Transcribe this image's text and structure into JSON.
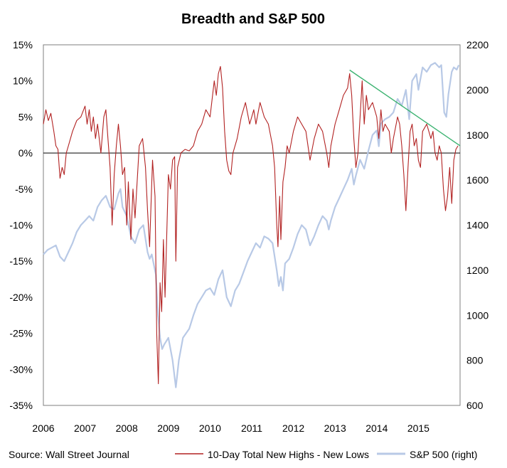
{
  "chart_data": {
    "type": "line",
    "title": "Breadth and S&P 500",
    "source": "Source: Wall Street Journal",
    "x_ticks": [
      "2006",
      "2007",
      "2008",
      "2009",
      "2010",
      "2011",
      "2012",
      "2013",
      "2014",
      "2015"
    ],
    "x_range": [
      2006.0,
      2016.0
    ],
    "y_left": {
      "range": [
        -35,
        15
      ],
      "ticks": [
        -35,
        -30,
        -25,
        -20,
        -15,
        -10,
        -5,
        0,
        5,
        10,
        15
      ],
      "tick_labels": [
        "-35%",
        "-30%",
        "-25%",
        "-20%",
        "-15%",
        "-10%",
        "-5%",
        "0%",
        "5%",
        "10%",
        "15%"
      ]
    },
    "y_right": {
      "range": [
        600,
        2200
      ],
      "ticks": [
        600,
        800,
        1000,
        1200,
        1400,
        1600,
        1800,
        2000,
        2200
      ],
      "tick_labels": [
        "600",
        "800",
        "1000",
        "1200",
        "1400",
        "1600",
        "1800",
        "2000",
        "2200"
      ]
    },
    "grid": false,
    "legend_position": "bottom",
    "series": [
      {
        "name": "10-Day Total New Highs - New Lows",
        "axis": "left",
        "color": "#b22222",
        "points": [
          [
            2006.0,
            4
          ],
          [
            2006.06,
            6
          ],
          [
            2006.12,
            4.5
          ],
          [
            2006.18,
            5.5
          ],
          [
            2006.25,
            3
          ],
          [
            2006.3,
            1
          ],
          [
            2006.35,
            0.5
          ],
          [
            2006.4,
            -3.5
          ],
          [
            2006.45,
            -2
          ],
          [
            2006.5,
            -3
          ],
          [
            2006.55,
            0
          ],
          [
            2006.6,
            1
          ],
          [
            2006.7,
            3
          ],
          [
            2006.8,
            4.5
          ],
          [
            2006.9,
            5
          ],
          [
            2007.0,
            6.5
          ],
          [
            2007.05,
            4
          ],
          [
            2007.1,
            6
          ],
          [
            2007.15,
            3
          ],
          [
            2007.2,
            5
          ],
          [
            2007.25,
            2
          ],
          [
            2007.3,
            4
          ],
          [
            2007.38,
            0
          ],
          [
            2007.45,
            5
          ],
          [
            2007.5,
            6
          ],
          [
            2007.55,
            2
          ],
          [
            2007.6,
            -2
          ],
          [
            2007.65,
            -10
          ],
          [
            2007.7,
            -3
          ],
          [
            2007.75,
            1
          ],
          [
            2007.8,
            4
          ],
          [
            2007.85,
            1
          ],
          [
            2007.9,
            -3
          ],
          [
            2007.95,
            -2
          ],
          [
            2008.0,
            -10
          ],
          [
            2008.04,
            -4
          ],
          [
            2008.1,
            -12
          ],
          [
            2008.15,
            -5
          ],
          [
            2008.2,
            -9
          ],
          [
            2008.3,
            1
          ],
          [
            2008.38,
            2
          ],
          [
            2008.45,
            -2
          ],
          [
            2008.5,
            -8
          ],
          [
            2008.55,
            -13
          ],
          [
            2008.62,
            -1
          ],
          [
            2008.68,
            -6
          ],
          [
            2008.72,
            -25
          ],
          [
            2008.76,
            -32
          ],
          [
            2008.8,
            -18
          ],
          [
            2008.84,
            -22
          ],
          [
            2008.88,
            -12
          ],
          [
            2008.92,
            -20
          ],
          [
            2009.0,
            -3
          ],
          [
            2009.05,
            -5
          ],
          [
            2009.1,
            -1
          ],
          [
            2009.15,
            -0.5
          ],
          [
            2009.18,
            -15
          ],
          [
            2009.22,
            -2
          ],
          [
            2009.3,
            0
          ],
          [
            2009.4,
            0.5
          ],
          [
            2009.5,
            0.3
          ],
          [
            2009.6,
            1
          ],
          [
            2009.7,
            3
          ],
          [
            2009.8,
            4
          ],
          [
            2009.9,
            6
          ],
          [
            2010.0,
            5
          ],
          [
            2010.1,
            10
          ],
          [
            2010.15,
            8
          ],
          [
            2010.2,
            11
          ],
          [
            2010.25,
            12
          ],
          [
            2010.3,
            9
          ],
          [
            2010.35,
            3
          ],
          [
            2010.4,
            -1
          ],
          [
            2010.45,
            -2.5
          ],
          [
            2010.5,
            -3
          ],
          [
            2010.55,
            0
          ],
          [
            2010.65,
            2
          ],
          [
            2010.75,
            5
          ],
          [
            2010.85,
            7
          ],
          [
            2010.95,
            4
          ],
          [
            2011.05,
            6
          ],
          [
            2011.1,
            4
          ],
          [
            2011.2,
            7
          ],
          [
            2011.3,
            5
          ],
          [
            2011.4,
            4
          ],
          [
            2011.5,
            1
          ],
          [
            2011.55,
            -2
          ],
          [
            2011.6,
            -10
          ],
          [
            2011.63,
            -13
          ],
          [
            2011.67,
            -6
          ],
          [
            2011.7,
            -12
          ],
          [
            2011.75,
            -4
          ],
          [
            2011.8,
            -2
          ],
          [
            2011.85,
            1
          ],
          [
            2011.9,
            0
          ],
          [
            2012.0,
            3
          ],
          [
            2012.1,
            5
          ],
          [
            2012.2,
            4
          ],
          [
            2012.3,
            3
          ],
          [
            2012.35,
            1
          ],
          [
            2012.4,
            -1
          ],
          [
            2012.5,
            2
          ],
          [
            2012.6,
            4
          ],
          [
            2012.7,
            3
          ],
          [
            2012.8,
            0
          ],
          [
            2012.85,
            -2
          ],
          [
            2012.9,
            1
          ],
          [
            2013.0,
            4
          ],
          [
            2013.1,
            6
          ],
          [
            2013.2,
            8
          ],
          [
            2013.3,
            9
          ],
          [
            2013.35,
            11
          ],
          [
            2013.4,
            8
          ],
          [
            2013.45,
            2
          ],
          [
            2013.5,
            -2
          ],
          [
            2013.55,
            0
          ],
          [
            2013.6,
            5
          ],
          [
            2013.65,
            10
          ],
          [
            2013.7,
            4
          ],
          [
            2013.75,
            8
          ],
          [
            2013.8,
            6
          ],
          [
            2013.9,
            7
          ],
          [
            2014.0,
            5
          ],
          [
            2014.05,
            2
          ],
          [
            2014.1,
            6
          ],
          [
            2014.15,
            3
          ],
          [
            2014.2,
            4
          ],
          [
            2014.3,
            3
          ],
          [
            2014.35,
            0
          ],
          [
            2014.4,
            2
          ],
          [
            2014.5,
            5
          ],
          [
            2014.55,
            4
          ],
          [
            2014.6,
            1
          ],
          [
            2014.65,
            -3
          ],
          [
            2014.7,
            -8
          ],
          [
            2014.75,
            -2
          ],
          [
            2014.8,
            3
          ],
          [
            2014.85,
            4
          ],
          [
            2014.9,
            1
          ],
          [
            2014.95,
            2
          ],
          [
            2015.0,
            -1
          ],
          [
            2015.05,
            -2
          ],
          [
            2015.1,
            3
          ],
          [
            2015.2,
            4
          ],
          [
            2015.3,
            2
          ],
          [
            2015.35,
            3
          ],
          [
            2015.4,
            0
          ],
          [
            2015.45,
            -1
          ],
          [
            2015.5,
            1
          ],
          [
            2015.55,
            0
          ],
          [
            2015.6,
            -5
          ],
          [
            2015.65,
            -8
          ],
          [
            2015.7,
            -6
          ],
          [
            2015.75,
            -2
          ],
          [
            2015.8,
            -7
          ],
          [
            2015.85,
            -1
          ],
          [
            2015.9,
            0.5
          ],
          [
            2015.95,
            1
          ]
        ]
      },
      {
        "name": "S&P 500 (right)",
        "axis": "right",
        "color": "#b8c9e6",
        "points": [
          [
            2006.0,
            1270
          ],
          [
            2006.1,
            1290
          ],
          [
            2006.2,
            1300
          ],
          [
            2006.3,
            1310
          ],
          [
            2006.4,
            1260
          ],
          [
            2006.5,
            1240
          ],
          [
            2006.6,
            1280
          ],
          [
            2006.7,
            1320
          ],
          [
            2006.8,
            1370
          ],
          [
            2006.9,
            1400
          ],
          [
            2007.0,
            1420
          ],
          [
            2007.1,
            1440
          ],
          [
            2007.2,
            1420
          ],
          [
            2007.3,
            1480
          ],
          [
            2007.4,
            1510
          ],
          [
            2007.5,
            1530
          ],
          [
            2007.6,
            1480
          ],
          [
            2007.7,
            1470
          ],
          [
            2007.8,
            1540
          ],
          [
            2007.85,
            1560
          ],
          [
            2007.9,
            1480
          ],
          [
            2008.0,
            1440
          ],
          [
            2008.1,
            1350
          ],
          [
            2008.2,
            1320
          ],
          [
            2008.3,
            1380
          ],
          [
            2008.4,
            1400
          ],
          [
            2008.5,
            1280
          ],
          [
            2008.55,
            1250
          ],
          [
            2008.6,
            1270
          ],
          [
            2008.7,
            1180
          ],
          [
            2008.75,
            1000
          ],
          [
            2008.8,
            900
          ],
          [
            2008.85,
            850
          ],
          [
            2008.9,
            870
          ],
          [
            2009.0,
            900
          ],
          [
            2009.1,
            800
          ],
          [
            2009.18,
            680
          ],
          [
            2009.25,
            800
          ],
          [
            2009.35,
            900
          ],
          [
            2009.5,
            940
          ],
          [
            2009.6,
            1000
          ],
          [
            2009.7,
            1050
          ],
          [
            2009.8,
            1080
          ],
          [
            2009.9,
            1110
          ],
          [
            2010.0,
            1120
          ],
          [
            2010.1,
            1090
          ],
          [
            2010.2,
            1160
          ],
          [
            2010.3,
            1200
          ],
          [
            2010.4,
            1080
          ],
          [
            2010.5,
            1040
          ],
          [
            2010.6,
            1110
          ],
          [
            2010.7,
            1140
          ],
          [
            2010.8,
            1190
          ],
          [
            2010.9,
            1240
          ],
          [
            2011.0,
            1280
          ],
          [
            2011.1,
            1320
          ],
          [
            2011.2,
            1300
          ],
          [
            2011.3,
            1350
          ],
          [
            2011.4,
            1340
          ],
          [
            2011.5,
            1320
          ],
          [
            2011.6,
            1200
          ],
          [
            2011.65,
            1130
          ],
          [
            2011.7,
            1170
          ],
          [
            2011.75,
            1110
          ],
          [
            2011.8,
            1230
          ],
          [
            2011.9,
            1250
          ],
          [
            2012.0,
            1300
          ],
          [
            2012.1,
            1360
          ],
          [
            2012.2,
            1400
          ],
          [
            2012.3,
            1380
          ],
          [
            2012.4,
            1310
          ],
          [
            2012.5,
            1350
          ],
          [
            2012.6,
            1400
          ],
          [
            2012.7,
            1440
          ],
          [
            2012.8,
            1420
          ],
          [
            2012.85,
            1380
          ],
          [
            2012.9,
            1420
          ],
          [
            2013.0,
            1480
          ],
          [
            2013.1,
            1520
          ],
          [
            2013.2,
            1560
          ],
          [
            2013.3,
            1600
          ],
          [
            2013.4,
            1650
          ],
          [
            2013.45,
            1580
          ],
          [
            2013.5,
            1620
          ],
          [
            2013.6,
            1690
          ],
          [
            2013.7,
            1650
          ],
          [
            2013.8,
            1730
          ],
          [
            2013.9,
            1800
          ],
          [
            2014.0,
            1820
          ],
          [
            2014.05,
            1750
          ],
          [
            2014.1,
            1850
          ],
          [
            2014.2,
            1870
          ],
          [
            2014.3,
            1880
          ],
          [
            2014.4,
            1900
          ],
          [
            2014.5,
            1960
          ],
          [
            2014.6,
            1930
          ],
          [
            2014.7,
            2000
          ],
          [
            2014.78,
            1870
          ],
          [
            2014.85,
            2040
          ],
          [
            2014.95,
            2070
          ],
          [
            2015.0,
            2000
          ],
          [
            2015.1,
            2100
          ],
          [
            2015.2,
            2080
          ],
          [
            2015.3,
            2110
          ],
          [
            2015.4,
            2120
          ],
          [
            2015.5,
            2100
          ],
          [
            2015.55,
            2110
          ],
          [
            2015.62,
            1900
          ],
          [
            2015.67,
            1880
          ],
          [
            2015.72,
            1980
          ],
          [
            2015.8,
            2080
          ],
          [
            2015.85,
            2100
          ],
          [
            2015.92,
            2090
          ],
          [
            2015.97,
            2110
          ]
        ]
      }
    ],
    "annotations": [
      {
        "type": "trendline",
        "color": "#3cb371",
        "from": [
          2013.35,
          11.5
        ],
        "to": [
          2016.0,
          1
        ]
      }
    ]
  }
}
